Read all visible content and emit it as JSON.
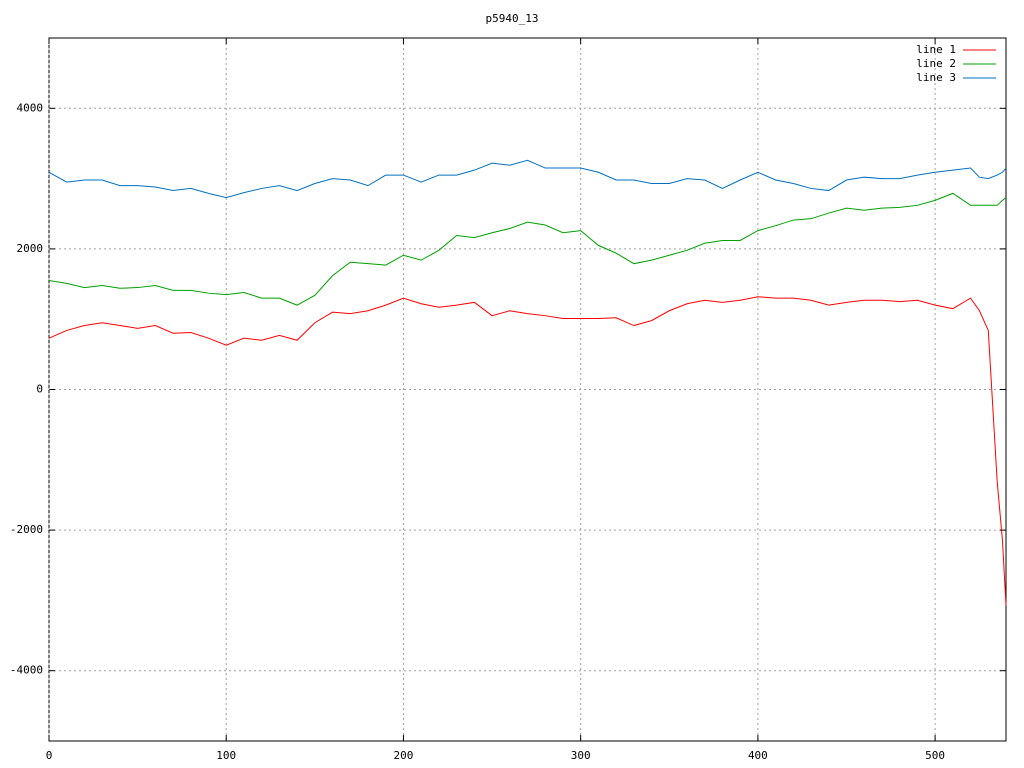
{
  "chart_data": {
    "type": "line",
    "title": "p5940_13",
    "x": [
      0,
      10,
      20,
      30,
      40,
      50,
      60,
      70,
      80,
      90,
      100,
      110,
      120,
      130,
      140,
      150,
      160,
      170,
      180,
      190,
      200,
      210,
      220,
      230,
      240,
      250,
      260,
      270,
      280,
      290,
      300,
      310,
      320,
      330,
      340,
      350,
      360,
      370,
      380,
      390,
      400,
      410,
      420,
      430,
      440,
      450,
      460,
      470,
      480,
      490,
      500,
      510,
      520,
      525,
      530,
      535,
      538,
      540
    ],
    "series": [
      {
        "name": "line 1",
        "color": "#ff0000",
        "values": [
          730,
          840,
          910,
          950,
          910,
          870,
          910,
          800,
          810,
          730,
          630,
          730,
          700,
          770,
          700,
          950,
          1100,
          1080,
          1120,
          1200,
          1300,
          1220,
          1170,
          1200,
          1240,
          1050,
          1120,
          1080,
          1050,
          1010,
          1010,
          1010,
          1020,
          910,
          980,
          1120,
          1220,
          1270,
          1240,
          1270,
          1320,
          1300,
          1300,
          1270,
          1200,
          1240,
          1270,
          1270,
          1250,
          1270,
          1200,
          1150,
          1300,
          1120,
          840,
          -1300,
          -2150,
          -3070
        ]
      },
      {
        "name": "line 2",
        "color": "#00a000",
        "values": [
          1550,
          1510,
          1450,
          1480,
          1440,
          1450,
          1480,
          1410,
          1410,
          1370,
          1350,
          1380,
          1300,
          1300,
          1200,
          1340,
          1620,
          1810,
          1790,
          1770,
          1910,
          1840,
          1980,
          2190,
          2160,
          2230,
          2290,
          2380,
          2340,
          2230,
          2260,
          2050,
          1940,
          1790,
          1840,
          1910,
          1980,
          2080,
          2120,
          2120,
          2260,
          2330,
          2410,
          2430,
          2510,
          2580,
          2550,
          2580,
          2590,
          2620,
          2690,
          2790,
          2620,
          2620,
          2620,
          2620,
          2690,
          2730
        ]
      },
      {
        "name": "line 3",
        "color": "#0070c0",
        "values": [
          3090,
          2950,
          2980,
          2980,
          2900,
          2900,
          2880,
          2830,
          2860,
          2790,
          2730,
          2800,
          2860,
          2900,
          2830,
          2930,
          3000,
          2980,
          2900,
          3050,
          3050,
          2950,
          3050,
          3050,
          3120,
          3220,
          3190,
          3260,
          3150,
          3150,
          3150,
          3090,
          2980,
          2980,
          2930,
          2930,
          3000,
          2980,
          2860,
          2980,
          3090,
          2980,
          2930,
          2860,
          2830,
          2980,
          3020,
          3000,
          3000,
          3050,
          3090,
          3120,
          3150,
          3020,
          3000,
          3050,
          3090,
          3150
        ]
      }
    ],
    "xlim": [
      0,
      540
    ],
    "ylim": [
      -5000,
      5000
    ],
    "xticks": [
      0,
      100,
      200,
      300,
      400,
      500
    ],
    "yticks": [
      -4000,
      -2000,
      0,
      2000,
      4000
    ],
    "grid": true,
    "legend": "upper-right"
  }
}
